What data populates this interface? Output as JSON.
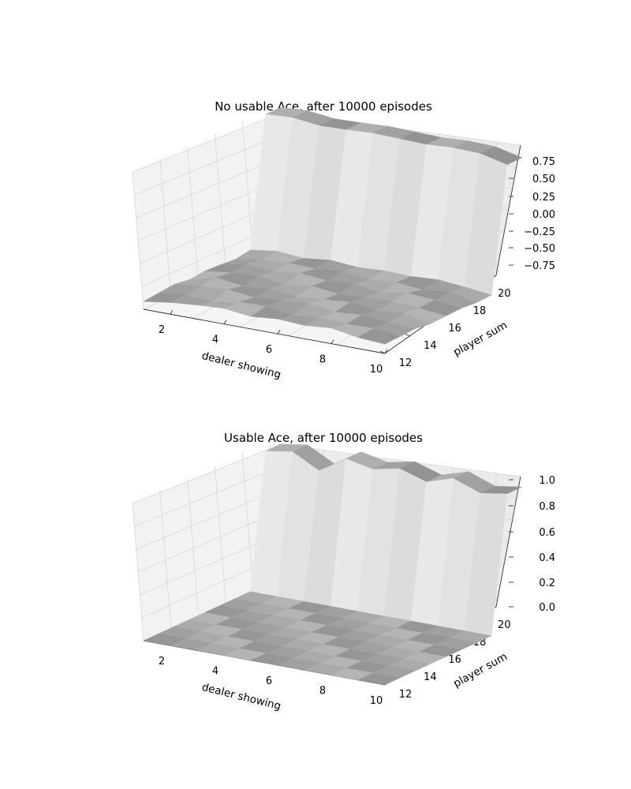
{
  "chart_data": [
    {
      "type": "surface",
      "title": "No usable Ace, after 10000 episodes",
      "xlabel": "dealer showing",
      "ylabel": "player sum",
      "zlabel": "",
      "xlim": [
        1,
        10
      ],
      "ylim": [
        12,
        21
      ],
      "zlim": [
        -0.9,
        0.9
      ],
      "x_ticks": [
        "2",
        "4",
        "6",
        "8",
        "10"
      ],
      "y_ticks": [
        "12",
        "14",
        "16",
        "18",
        "20"
      ],
      "z_ticks": [
        "0.75",
        "0.50",
        "0.25",
        "0.00",
        "−0.25",
        "−0.50",
        "−0.75"
      ],
      "grid": true,
      "x": [
        1,
        2,
        3,
        4,
        5,
        6,
        7,
        8,
        9,
        10
      ],
      "y": [
        12,
        13,
        14,
        15,
        16,
        17,
        18,
        19,
        20,
        21
      ],
      "z": [
        [
          -0.8,
          -0.75,
          -0.72,
          -0.7,
          -0.74,
          -0.71,
          -0.73,
          -0.7,
          -0.76,
          -0.78
        ],
        [
          -0.78,
          -0.74,
          -0.77,
          -0.71,
          -0.7,
          -0.75,
          -0.72,
          -0.74,
          -0.73,
          -0.77
        ],
        [
          -0.76,
          -0.72,
          -0.7,
          -0.74,
          -0.72,
          -0.69,
          -0.74,
          -0.71,
          -0.75,
          -0.76
        ],
        [
          -0.79,
          -0.7,
          -0.75,
          -0.72,
          -0.76,
          -0.73,
          -0.7,
          -0.75,
          -0.72,
          -0.79
        ],
        [
          -0.77,
          -0.73,
          -0.71,
          -0.76,
          -0.71,
          -0.75,
          -0.73,
          -0.72,
          -0.74,
          -0.78
        ],
        [
          -0.78,
          -0.71,
          -0.74,
          -0.7,
          -0.73,
          -0.71,
          -0.76,
          -0.7,
          -0.73,
          -0.77
        ],
        [
          -0.8,
          -0.74,
          -0.72,
          -0.73,
          -0.7,
          -0.74,
          -0.72,
          -0.75,
          -0.71,
          -0.79
        ],
        [
          -0.77,
          -0.72,
          -0.75,
          -0.71,
          -0.74,
          -0.72,
          -0.73,
          -0.71,
          -0.74,
          -0.78
        ],
        [
          0.88,
          0.9,
          0.86,
          0.87,
          0.89,
          0.88,
          0.87,
          0.89,
          0.88,
          0.8
        ],
        [
          0.88,
          0.9,
          0.86,
          0.87,
          0.89,
          0.88,
          0.87,
          0.89,
          0.88,
          0.8
        ]
      ]
    },
    {
      "type": "surface",
      "title": "Usable Ace, after 10000 episodes",
      "xlabel": "dealer showing",
      "ylabel": "player sum",
      "zlabel": "",
      "xlim": [
        1,
        10
      ],
      "ylim": [
        12,
        21
      ],
      "zlim": [
        0,
        1
      ],
      "x_ticks": [
        "2",
        "4",
        "6",
        "8",
        "10"
      ],
      "y_ticks": [
        "12",
        "14",
        "16",
        "18",
        "20"
      ],
      "z_ticks": [
        "1.0",
        "0.8",
        "0.6",
        "0.4",
        "0.2",
        "0.0"
      ],
      "grid": true,
      "x": [
        1,
        2,
        3,
        4,
        5,
        6,
        7,
        8,
        9,
        10
      ],
      "y": [
        12,
        13,
        14,
        15,
        16,
        17,
        18,
        19,
        20,
        21
      ],
      "z": [
        [
          0,
          0,
          0,
          0,
          0,
          0,
          0,
          0,
          0,
          0
        ],
        [
          0,
          0,
          0,
          0,
          0,
          0,
          0,
          0,
          0,
          0
        ],
        [
          0,
          0,
          0,
          0,
          0,
          0,
          0,
          0,
          0,
          0
        ],
        [
          0,
          0,
          0,
          0,
          0,
          0,
          0,
          0,
          0,
          0
        ],
        [
          0,
          0,
          0,
          0,
          0,
          0,
          0,
          0,
          0,
          0
        ],
        [
          0,
          0,
          0,
          0,
          0,
          0,
          0,
          0,
          0,
          0
        ],
        [
          0,
          0,
          0,
          0,
          0,
          0,
          0,
          0,
          0,
          0
        ],
        [
          0,
          0,
          0,
          0,
          0,
          0,
          0,
          0,
          0,
          0
        ],
        [
          0.95,
          0.98,
          0.88,
          1.0,
          0.96,
          1.0,
          0.94,
          1.0,
          0.93,
          0.96
        ],
        [
          0.95,
          0.98,
          0.88,
          1.0,
          0.96,
          1.0,
          0.94,
          1.0,
          0.93,
          0.96
        ]
      ]
    }
  ]
}
